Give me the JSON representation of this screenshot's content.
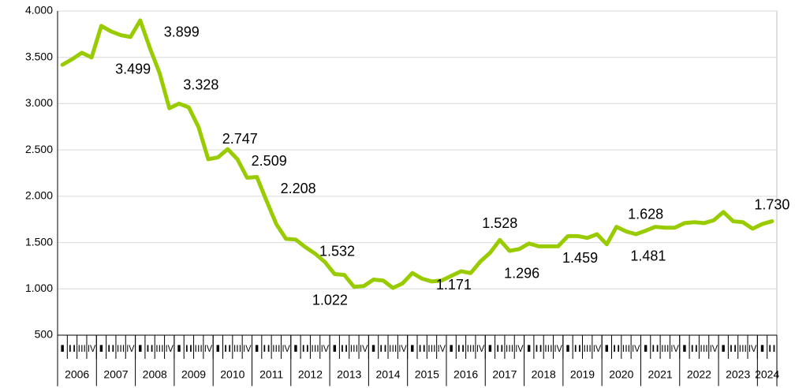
{
  "chart_data": {
    "type": "line",
    "categories": [
      "I",
      "II",
      "III",
      "IV",
      "I",
      "II",
      "III",
      "IV",
      "I",
      "II",
      "III",
      "IV",
      "I",
      "II",
      "III",
      "IV",
      "I",
      "II",
      "III",
      "IV",
      "I",
      "II",
      "III",
      "IV",
      "I",
      "II",
      "III",
      "IV",
      "I",
      "II",
      "III",
      "IV",
      "I",
      "II",
      "III",
      "IV",
      "I",
      "II",
      "III",
      "IV",
      "I",
      "II",
      "III",
      "IV",
      "I",
      "II",
      "III",
      "IV",
      "I",
      "II",
      "III",
      "IV",
      "I",
      "II",
      "III",
      "IV",
      "I",
      "II",
      "III",
      "IV",
      "I",
      "II",
      "III",
      "IV",
      "I",
      "II",
      "III",
      "IV",
      "I",
      "II",
      "III",
      "IV",
      "I",
      "II"
    ],
    "years": [
      "2006",
      "2007",
      "2008",
      "2009",
      "2010",
      "2011",
      "2012",
      "2013",
      "2014",
      "2015",
      "2016",
      "2017",
      "2018",
      "2019",
      "2020",
      "2021",
      "2022",
      "2023",
      "2024"
    ],
    "series": [
      {
        "color": "#99cc00",
        "values": [
          3420,
          3480,
          3550,
          3499,
          3840,
          3780,
          3740,
          3720,
          3899,
          3600,
          3328,
          2950,
          3000,
          2960,
          2747,
          2400,
          2420,
          2509,
          2400,
          2200,
          2208,
          1950,
          1700,
          1540,
          1532,
          1450,
          1380,
          1290,
          1160,
          1150,
          1022,
          1030,
          1100,
          1090,
          1010,
          1060,
          1171,
          1110,
          1080,
          1090,
          1140,
          1190,
          1170,
          1296,
          1390,
          1528,
          1410,
          1430,
          1490,
          1459,
          1459,
          1460,
          1570,
          1570,
          1550,
          1590,
          1481,
          1670,
          1620,
          1590,
          1628,
          1670,
          1660,
          1660,
          1710,
          1720,
          1710,
          1740,
          1830,
          1730,
          1720,
          1650,
          1700,
          1730
        ],
        "value_labels": [
          null,
          null,
          null,
          "3.499",
          null,
          null,
          null,
          null,
          "3.899",
          null,
          "3.328",
          null,
          null,
          null,
          "2.747",
          null,
          null,
          "2.509",
          null,
          null,
          "2.208",
          null,
          null,
          null,
          "1.532",
          null,
          null,
          null,
          null,
          null,
          "1.022",
          null,
          null,
          null,
          null,
          null,
          "1.171",
          null,
          null,
          null,
          null,
          null,
          null,
          "1.296",
          null,
          "1.528",
          null,
          null,
          null,
          "1.459",
          null,
          null,
          null,
          null,
          null,
          null,
          "1.481",
          null,
          null,
          null,
          "1.628",
          null,
          null,
          null,
          null,
          null,
          null,
          null,
          null,
          null,
          null,
          null,
          null,
          "1.730"
        ]
      }
    ],
    "ylim": [
      500,
      4000
    ],
    "yticks": [
      {
        "value": 500,
        "label": "500"
      },
      {
        "value": 1000,
        "label": "1.000"
      },
      {
        "value": 1500,
        "label": "1.500"
      },
      {
        "value": 2000,
        "label": "2.000"
      },
      {
        "value": 2500,
        "label": "2.500"
      },
      {
        "value": 3000,
        "label": "3.000"
      },
      {
        "value": 3500,
        "label": "3.500"
      },
      {
        "value": 4000,
        "label": "4.000"
      }
    ],
    "grid": true
  }
}
